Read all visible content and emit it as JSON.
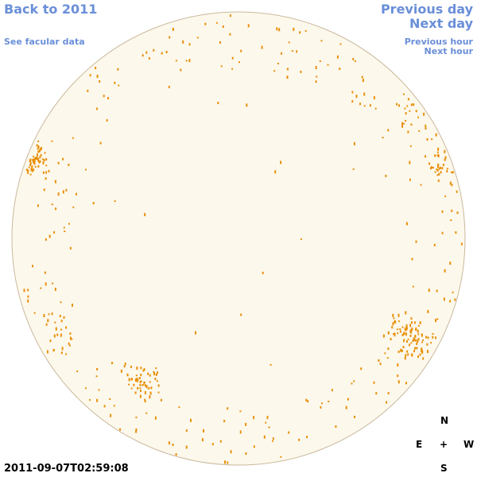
{
  "links": {
    "back_to_year": "Back to 2011",
    "see_facular_data": "See facular data",
    "previous_day": "Previous day",
    "next_day": "Next day",
    "previous_hour": "Previous hour",
    "next_hour": "Next hour"
  },
  "timestamp": "2011-09-07T02:59:08",
  "compass": {
    "north": "N",
    "east": "E",
    "center": "+",
    "west": "W",
    "south": "S"
  }
}
